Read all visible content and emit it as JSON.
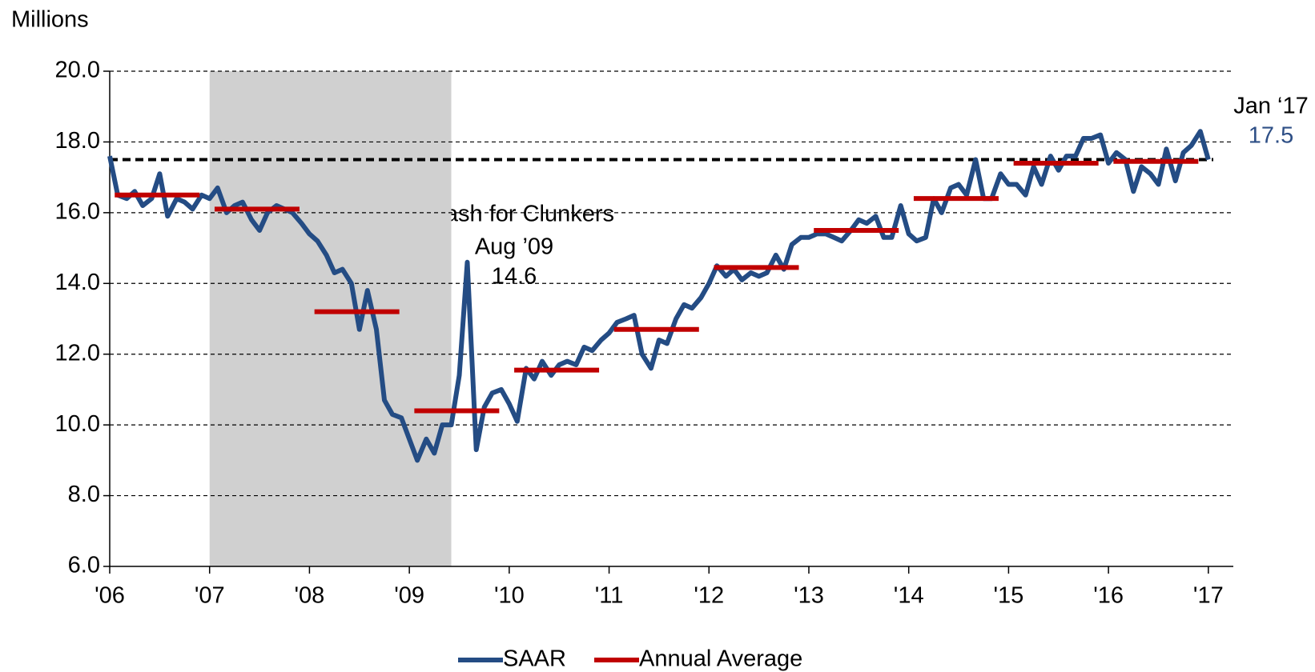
{
  "chart_data": {
    "type": "line",
    "y_unit_label": "Millions",
    "xlim": [
      2006,
      2017.25
    ],
    "xticks": [
      {
        "value": 2006,
        "label": "'06"
      },
      {
        "value": 2007,
        "label": "'07"
      },
      {
        "value": 2008,
        "label": "'08"
      },
      {
        "value": 2009,
        "label": "'09"
      },
      {
        "value": 2010,
        "label": "'10"
      },
      {
        "value": 2011,
        "label": "'11"
      },
      {
        "value": 2012,
        "label": "'12"
      },
      {
        "value": 2013,
        "label": "'13"
      },
      {
        "value": 2014,
        "label": "'14"
      },
      {
        "value": 2015,
        "label": "'15"
      },
      {
        "value": 2016,
        "label": "'16"
      },
      {
        "value": 2017,
        "label": "'17"
      }
    ],
    "ylim": [
      6,
      20
    ],
    "yticks": [
      {
        "value": 6,
        "label": "6.0"
      },
      {
        "value": 8,
        "label": "8.0"
      },
      {
        "value": 10,
        "label": "10.0"
      },
      {
        "value": 12,
        "label": "12.0"
      },
      {
        "value": 14,
        "label": "14.0"
      },
      {
        "value": 16,
        "label": "16.0"
      },
      {
        "value": 18,
        "label": "18.0"
      },
      {
        "value": 20,
        "label": "20.0"
      }
    ],
    "grid": true,
    "shaded_region": [
      2007,
      2009.42
    ],
    "reference_line": 17.5,
    "series": [
      {
        "name": "SAAR",
        "color": "#244c84",
        "x": [
          2006.0,
          2006.08,
          2006.17,
          2006.25,
          2006.33,
          2006.42,
          2006.5,
          2006.58,
          2006.67,
          2006.75,
          2006.83,
          2006.92,
          2007.0,
          2007.08,
          2007.17,
          2007.25,
          2007.33,
          2007.42,
          2007.5,
          2007.58,
          2007.67,
          2007.75,
          2007.83,
          2007.92,
          2008.0,
          2008.08,
          2008.17,
          2008.25,
          2008.33,
          2008.42,
          2008.5,
          2008.58,
          2008.67,
          2008.75,
          2008.83,
          2008.92,
          2009.0,
          2009.08,
          2009.17,
          2009.25,
          2009.33,
          2009.42,
          2009.5,
          2009.58,
          2009.67,
          2009.75,
          2009.83,
          2009.92,
          2010.0,
          2010.08,
          2010.17,
          2010.25,
          2010.33,
          2010.42,
          2010.5,
          2010.58,
          2010.67,
          2010.75,
          2010.83,
          2010.92,
          2011.0,
          2011.08,
          2011.17,
          2011.25,
          2011.33,
          2011.42,
          2011.5,
          2011.58,
          2011.67,
          2011.75,
          2011.83,
          2011.92,
          2012.0,
          2012.08,
          2012.17,
          2012.25,
          2012.33,
          2012.42,
          2012.5,
          2012.58,
          2012.67,
          2012.75,
          2012.83,
          2012.92,
          2013.0,
          2013.08,
          2013.17,
          2013.25,
          2013.33,
          2013.42,
          2013.5,
          2013.58,
          2013.67,
          2013.75,
          2013.83,
          2013.92,
          2014.0,
          2014.08,
          2014.17,
          2014.25,
          2014.33,
          2014.42,
          2014.5,
          2014.58,
          2014.67,
          2014.75,
          2014.83,
          2014.92,
          2015.0,
          2015.08,
          2015.17,
          2015.25,
          2015.33,
          2015.42,
          2015.5,
          2015.58,
          2015.67,
          2015.75,
          2015.83,
          2015.92,
          2016.0,
          2016.08,
          2016.17,
          2016.25,
          2016.33,
          2016.42,
          2016.5,
          2016.58,
          2016.67,
          2016.75,
          2016.83,
          2016.92,
          2017.0
        ],
        "values": [
          17.6,
          16.5,
          16.4,
          16.6,
          16.2,
          16.4,
          17.1,
          15.9,
          16.4,
          16.3,
          16.1,
          16.5,
          16.4,
          16.7,
          16.0,
          16.2,
          16.3,
          15.8,
          15.5,
          16.0,
          16.2,
          16.1,
          16.0,
          15.7,
          15.4,
          15.2,
          14.8,
          14.3,
          14.4,
          14.0,
          12.7,
          13.8,
          12.7,
          10.7,
          10.3,
          10.2,
          9.6,
          9.0,
          9.6,
          9.2,
          10.0,
          10.0,
          11.4,
          14.6,
          9.3,
          10.5,
          10.9,
          11.0,
          10.6,
          10.1,
          11.6,
          11.3,
          11.8,
          11.4,
          11.7,
          11.8,
          11.7,
          12.2,
          12.1,
          12.4,
          12.6,
          12.9,
          13.0,
          13.1,
          12.0,
          11.6,
          12.4,
          12.3,
          13.0,
          13.4,
          13.3,
          13.6,
          14.0,
          14.5,
          14.2,
          14.4,
          14.1,
          14.3,
          14.2,
          14.3,
          14.8,
          14.4,
          15.1,
          15.3,
          15.3,
          15.4,
          15.4,
          15.3,
          15.2,
          15.5,
          15.8,
          15.7,
          15.9,
          15.3,
          15.3,
          16.2,
          15.4,
          15.2,
          15.3,
          16.4,
          16.0,
          16.7,
          16.8,
          16.5,
          17.5,
          16.4,
          16.4,
          17.1,
          16.8,
          16.8,
          16.5,
          17.3,
          16.8,
          17.6,
          17.2,
          17.6,
          17.6,
          18.1,
          18.1,
          18.2,
          17.4,
          17.7,
          17.5,
          16.6,
          17.3,
          17.1,
          16.8,
          17.8,
          16.9,
          17.7,
          17.9,
          18.3,
          17.5
        ]
      },
      {
        "name": "Annual Average",
        "color": "#c00000",
        "style": "annual-segments",
        "x": [
          2006,
          2007,
          2008,
          2009,
          2010,
          2011,
          2012,
          2013,
          2014,
          2015,
          2016
        ],
        "values": [
          16.5,
          16.1,
          13.2,
          10.4,
          11.55,
          12.7,
          14.45,
          15.5,
          16.4,
          17.4,
          17.45
        ]
      }
    ],
    "annotations": [
      {
        "text": "Cash for Clunkers"
      },
      {
        "text": "Aug ’09"
      },
      {
        "text": "14.6"
      },
      {
        "text": "Jan ‘17"
      },
      {
        "text": "17.5"
      }
    ]
  }
}
